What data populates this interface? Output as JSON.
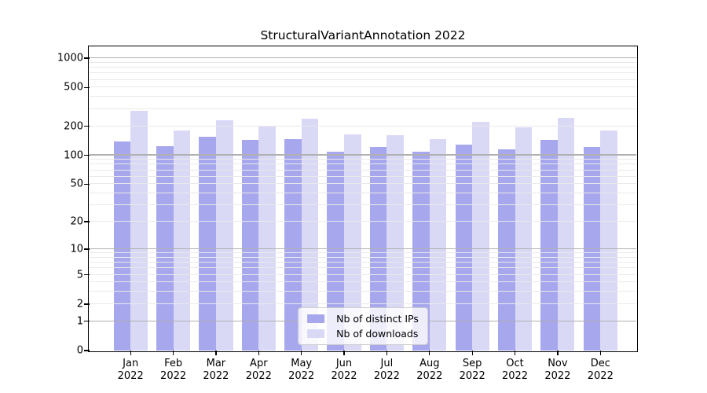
{
  "chart_data": {
    "type": "bar",
    "title": "StructuralVariantAnnotation 2022",
    "categories": [
      "Jan 2022",
      "Feb 2022",
      "Mar 2022",
      "Apr 2022",
      "May 2022",
      "Jun 2022",
      "Jul 2022",
      "Aug 2022",
      "Sep 2022",
      "Oct 2022",
      "Nov 2022",
      "Dec 2022"
    ],
    "series": [
      {
        "name": "Nb of distinct IPs",
        "color": "#a7a7ee",
        "values": [
          140,
          124,
          155,
          145,
          148,
          110,
          123,
          110,
          130,
          116,
          144,
          121
        ]
      },
      {
        "name": "Nb of downloads",
        "color": "#d9d9f6",
        "values": [
          290,
          180,
          230,
          197,
          237,
          164,
          162,
          148,
          220,
          196,
          242,
          182
        ]
      }
    ],
    "xlabel": "",
    "ylabel": "",
    "y_scale": "log1p",
    "y_ticks": [
      0,
      1,
      2,
      5,
      10,
      20,
      50,
      100,
      200,
      500,
      1000
    ],
    "ylim": [
      0,
      1300
    ],
    "grid": true,
    "legend_position": "lower center"
  },
  "colors": {
    "distinct_ips_bar": "#a7a7ee",
    "downloads_bar": "#d9d9f6",
    "major_gridline": "#b0b0b0",
    "minor_gridline": "#e9e9e9",
    "spine": "#000000",
    "legend_border": "#cccccc",
    "background": "#ffffff"
  }
}
